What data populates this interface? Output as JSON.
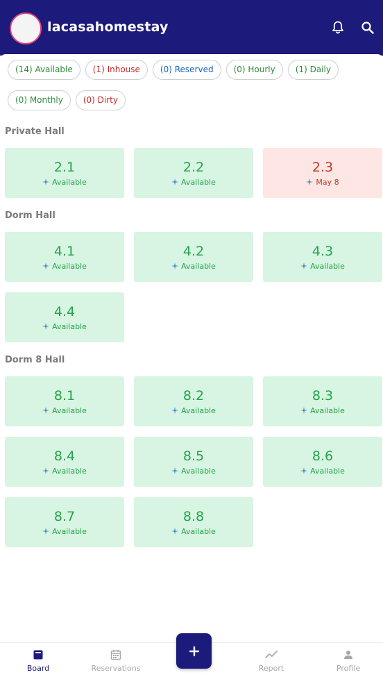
{
  "app": {
    "title": "lacasahomestay"
  },
  "colors": {
    "brand": "#1c1a7a",
    "available_bg": "#d7f5e2",
    "available_text": "#27a24a",
    "busy_bg": "#fde6e3",
    "busy_text": "#c0392b"
  },
  "filters": [
    {
      "label": "(14) Available",
      "tone": "green"
    },
    {
      "label": "(1) Inhouse",
      "tone": "red"
    },
    {
      "label": "(0) Reserved",
      "tone": "blue"
    },
    {
      "label": "(0) Hourly",
      "tone": "green"
    },
    {
      "label": "(1) Daily",
      "tone": "green"
    },
    {
      "label": "(0) Monthly",
      "tone": "green"
    },
    {
      "label": "(0) Dirty",
      "tone": "red"
    }
  ],
  "sections": [
    {
      "name": "Private Hall",
      "rooms": [
        {
          "number": "2.1",
          "status": "Available",
          "state": "available"
        },
        {
          "number": "2.2",
          "status": "Available",
          "state": "available"
        },
        {
          "number": "2.3",
          "status": "May 8",
          "state": "busy"
        }
      ]
    },
    {
      "name": "Dorm Hall",
      "rooms": [
        {
          "number": "4.1",
          "status": "Available",
          "state": "available"
        },
        {
          "number": "4.2",
          "status": "Available",
          "state": "available"
        },
        {
          "number": "4.3",
          "status": "Available",
          "state": "available"
        },
        {
          "number": "4.4",
          "status": "Available",
          "state": "available"
        }
      ]
    },
    {
      "name": "Dorm 8 Hall",
      "rooms": [
        {
          "number": "8.1",
          "status": "Available",
          "state": "available"
        },
        {
          "number": "8.2",
          "status": "Available",
          "state": "available"
        },
        {
          "number": "8.3",
          "status": "Available",
          "state": "available"
        },
        {
          "number": "8.4",
          "status": "Available",
          "state": "available"
        },
        {
          "number": "8.5",
          "status": "Available",
          "state": "available"
        },
        {
          "number": "8.6",
          "status": "Available",
          "state": "available"
        },
        {
          "number": "8.7",
          "status": "Available",
          "state": "available"
        },
        {
          "number": "8.8",
          "status": "Available",
          "state": "available"
        }
      ]
    }
  ],
  "nav": {
    "items": [
      {
        "label": "Board",
        "icon": "board-icon",
        "active": true
      },
      {
        "label": "Reservations",
        "icon": "calendar-icon",
        "active": false
      },
      {
        "label": "Report",
        "icon": "chart-line-icon",
        "active": false
      },
      {
        "label": "Profile",
        "icon": "person-icon",
        "active": false
      }
    ],
    "fab_icon": "plus-icon"
  },
  "header_icons": {
    "notifications": "bell-icon",
    "search": "search-icon"
  }
}
